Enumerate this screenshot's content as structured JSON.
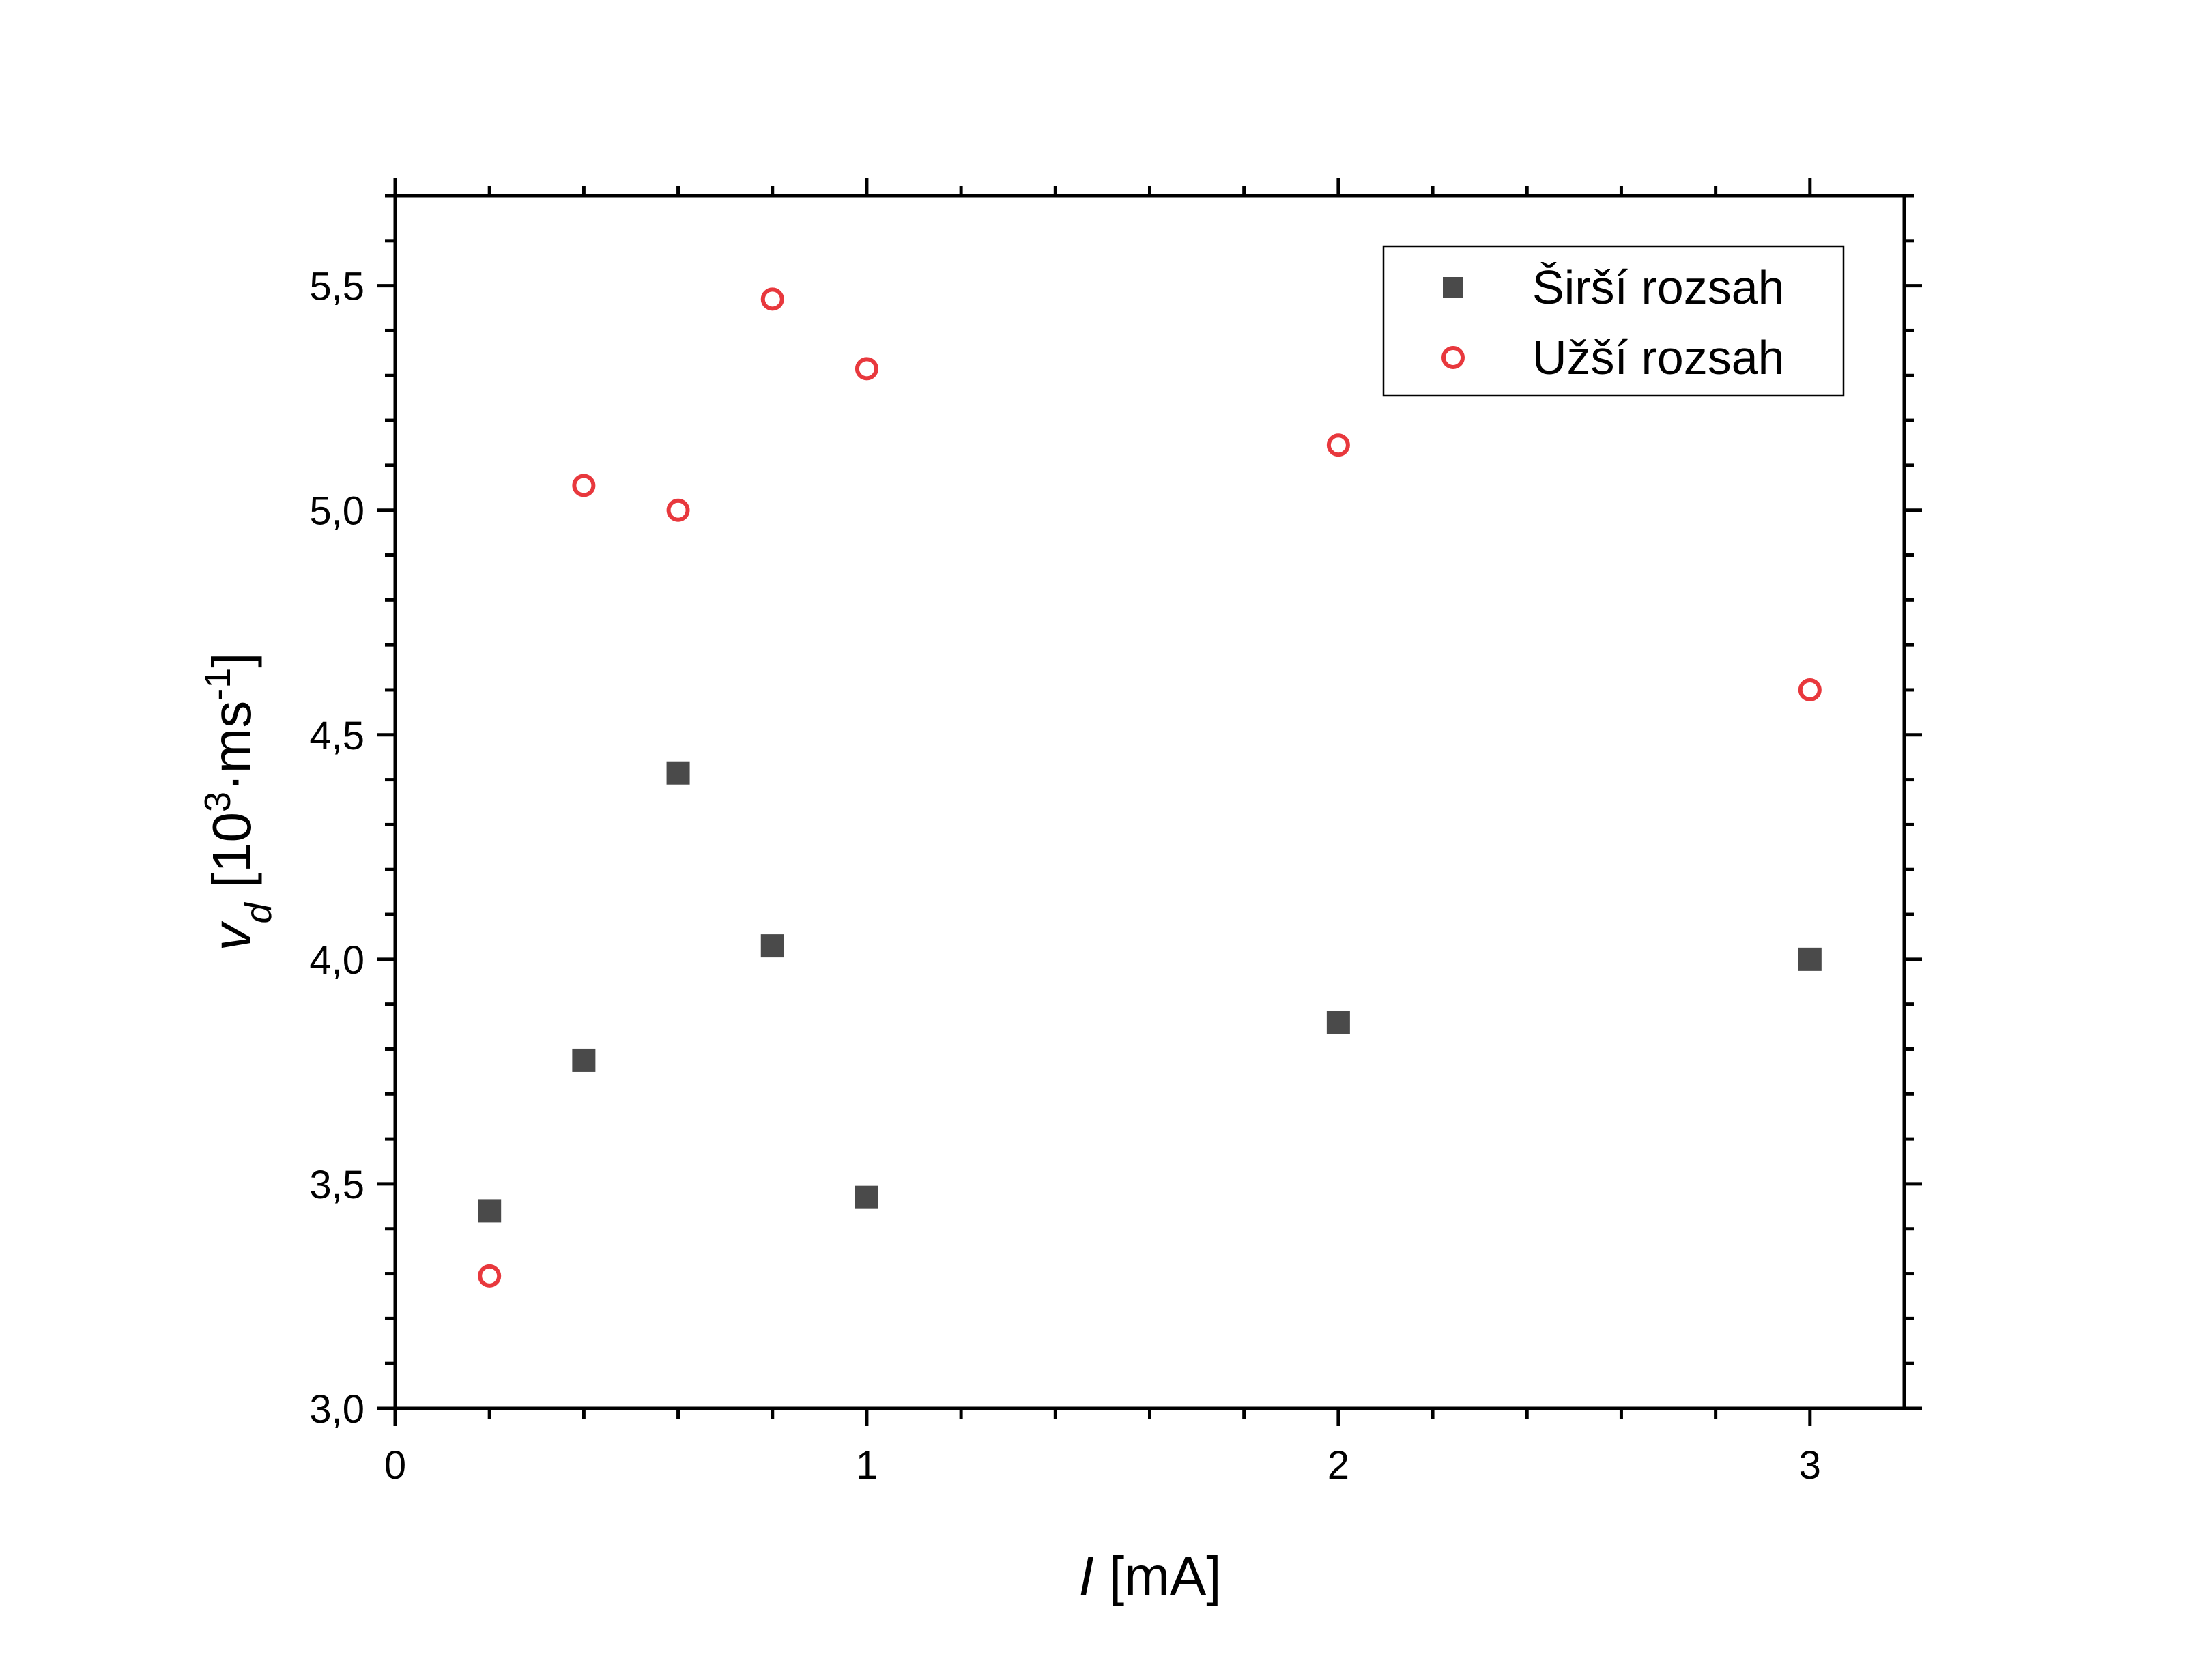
{
  "chart_data": {
    "type": "scatter",
    "title": "",
    "xlabel": {
      "italic": "I",
      "rest": " [mA]"
    },
    "ylabel": {
      "italic": "v",
      "sub": "d",
      "rest1": " [10",
      "sup1": "3",
      "rest2": "·ms",
      "sup2": "-1",
      "rest3": "]"
    },
    "xlim": [
      0,
      3.2
    ],
    "ylim": [
      3.0,
      5.7
    ],
    "x_ticks": [
      0,
      1,
      2,
      3
    ],
    "x_tick_labels": [
      "0",
      "1",
      "2",
      "3"
    ],
    "y_ticks": [
      3.0,
      3.5,
      4.0,
      4.5,
      5.0,
      5.5
    ],
    "y_tick_labels": [
      "3,0",
      "3,5",
      "4,0",
      "4,5",
      "5,0",
      "5,5"
    ],
    "grid": false,
    "legend_position": "top-right",
    "series": [
      {
        "name": "Širší rozsah",
        "marker": "square-filled",
        "color": "#4a4a4a",
        "x": [
          0.2,
          0.4,
          0.6,
          0.8,
          1.0,
          2.0,
          3.0
        ],
        "y": [
          3.44,
          3.775,
          4.415,
          4.03,
          3.47,
          3.86,
          4.0
        ]
      },
      {
        "name": "Užší rozsah",
        "marker": "circle-open",
        "color": "#e8383d",
        "x": [
          0.2,
          0.4,
          0.6,
          0.8,
          1.0,
          2.0,
          3.0
        ],
        "y": [
          3.295,
          5.055,
          5.0,
          5.47,
          5.315,
          5.145,
          4.6
        ]
      }
    ]
  }
}
